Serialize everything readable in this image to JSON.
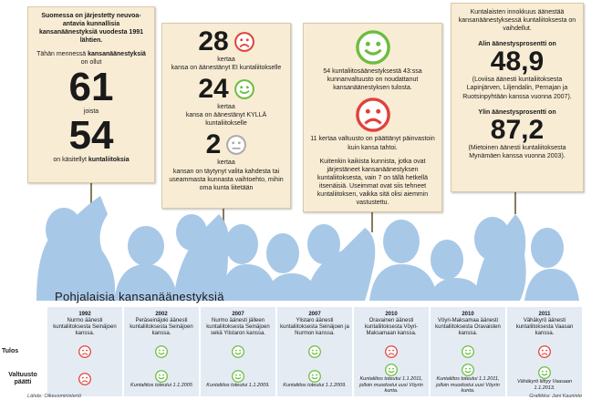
{
  "panels": [
    {
      "intro": "Suomessa on järjestetty neuvoa-antavia kunnallisia kansanäänestyksiä vuodesta 1991 lähtien.",
      "lead": [
        "Tähän mennessä ",
        "kansanäänestyksiä",
        " on ollut"
      ],
      "total": "61",
      "of_which": "joista",
      "mergers": "54",
      "merger_text": [
        "on käsitellyt ",
        "kuntaliitoksia"
      ]
    },
    {
      "items": [
        {
          "number": "28",
          "unit": "kertaa",
          "text": "kansa on äänestänyt EI kuntaliitokselle"
        },
        {
          "number": "24",
          "unit": "kertaa",
          "text": "kansa on äänestänyt KYLLÄ kuntaliitokselle"
        },
        {
          "number": "2",
          "unit": "kertaa",
          "text": "kansan on täytynyt valita kahdesta tai useammasta kunnasta vaihtoehto, mihin oma kunta liitetään"
        }
      ]
    },
    {
      "followed": "54 kuntaliitosäänestyksestä 43:ssa kunnanvaltuusto on noudattanut kansanäänestyksen tulosta.",
      "against": "11 kertaa valtuusto on päättänyt päinvastoin kuin kansa tahtoi.",
      "note": "Kuitenkin kaikista kunnista, jotka ovat järjestäneet kansanäänestyksen kuntaliitoksesta, vain 7 on tällä hetkellä itsenäisiä. Useimmat ovat siis tehneet kuntaliitoksen, vaikka sitä olisi aiemmin vastustettu."
    },
    {
      "intro": "Kuntalaisten innokkuus äänestää kansanäänestyksessä kuntaliitoksesta on vaihdellut.",
      "low": {
        "label": "Alin äänestysprosentti on",
        "value": "48,9",
        "text": "(Loviisa äänesti kuntaliitoksesta Lapinjärven, Liljendalin, Pernajan ja Ruotsinpyhtään kanssa vuonna 2007)."
      },
      "high": {
        "label": "Ylin äänestysprosentti on",
        "value": "87,2",
        "text": "(Mietoinen äänesti kuntaliitoksesta Mynämäen kanssa vuonna 2003)."
      }
    }
  ],
  "table": {
    "title": "Pohjalaisia kansanäänestyksiä",
    "row_labels": [
      "Tulos",
      "Valtuusto päätti"
    ],
    "columns": [
      {
        "year": "1992",
        "text": "Nurmo äänesti kuntaliitoksesta Seinäjoen kanssa."
      },
      {
        "year": "2002",
        "text": "Peräseinäjoki äänesti kuntaliitoksesta Seinäjoen kanssa.",
        "note": "Kuntaliitos toteutui 1.1.2005"
      },
      {
        "year": "2007",
        "text": "Nurmo äänesti jälleen kuntaliitoksesta Seinäjoen sekä Ylistaron kanssa.",
        "note": "Kuntaliitos toteutui 1.1.2009."
      },
      {
        "year": "2007",
        "text": "Ylistaro äänesti kuntaliitoksesta Seinäjoen ja Nurmon kanssa.",
        "note": "Kuntaliitos toteutui 1.1.2009."
      },
      {
        "year": "2010",
        "text": "Oravainen äänesti kuntaliitoksesta Vöyri-Maksamaan kanssa.",
        "note": "Kuntaliitos toteutui 1.1.2011, jolloin muodostui uusi Vöyrin kunta."
      },
      {
        "year": "2010",
        "text": "Vöyri-Maksamaa äänesti kuntaliitoksesta Oravaisten kanssa.",
        "note": "Kuntaliitos toteutui 1.1.2011, jolloin muodostui uusi Vöyrin kunta."
      },
      {
        "year": "2011",
        "text": "Vähäkyrö äänesti kuntaliitoksesta Vaasan kanssa.",
        "note": "Vähäkyrö liittyy Vaasaan 1.1.2013."
      }
    ]
  },
  "footer": {
    "source": "Lähde: Oikeusministeriö",
    "credit": "Grafiikka: Jani Kaunisto"
  }
}
